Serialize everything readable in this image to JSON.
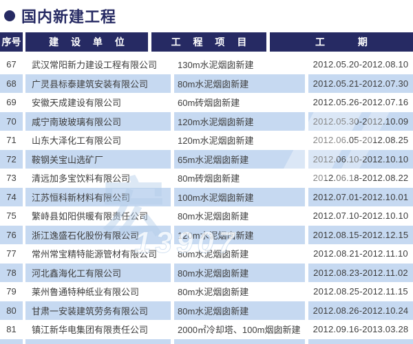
{
  "title": "国内新建工程",
  "colors": {
    "navy": "#262a63",
    "row_blue": "#c6d9f1",
    "body_text": "#3d3d3d",
    "header_text": "#ffffff"
  },
  "table": {
    "headers": [
      "序号",
      "建 设 单 位",
      "工 程 项 目",
      "工 期"
    ],
    "rows": [
      {
        "no": "67",
        "company": "武汉常阳新力建设工程有限公司",
        "project": "130m水泥烟囱新建",
        "period": "2012.05.20-2012.08.10"
      },
      {
        "no": "68",
        "company": "广灵县标泰建筑安装有限公司",
        "project": "80m水泥烟囱新建",
        "period": "2012.05.21-2012.07.30"
      },
      {
        "no": "69",
        "company": "安徽天成建设有限公司",
        "project": "60m砖烟囱新建",
        "period": "2012.05.26-2012.07.16"
      },
      {
        "no": "70",
        "company": "咸宁南玻玻璃有限公司",
        "project": "120m水泥烟囱新建",
        "period": "2012.05.30-2012.10.09"
      },
      {
        "no": "71",
        "company": "山东大泽化工有限公司",
        "project": "120m水泥烟囱新建",
        "period": "2012.06.05-2012.08.25"
      },
      {
        "no": "72",
        "company": "鞍钢关宝山选矿厂",
        "project": "65m水泥烟囱新建",
        "period": "2012.06.10-2012.10.10"
      },
      {
        "no": "73",
        "company": "清远加多宝饮料有限公司",
        "project": "80m砖烟囱新建",
        "period": "2012.06.18-2012.08.22"
      },
      {
        "no": "74",
        "company": "江苏恒科新材料有限公司",
        "project": "100m水泥烟囱新建",
        "period": "2012.07.01-2012.10.01"
      },
      {
        "no": "75",
        "company": "繁峙县如阳供暖有限责任公司",
        "project": "80m水泥烟囱新建",
        "period": "2012.07.10-2012.10.10"
      },
      {
        "no": "76",
        "company": "浙江逸盛石化股份有限公司",
        "project": "120m水泥烟囱新建",
        "period": "2012.08.15-2012.12.15"
      },
      {
        "no": "77",
        "company": "常州常宝精特能源管材有限公司",
        "project": "80m水泥烟囱新建",
        "period": "2012.08.21-2012.11.10"
      },
      {
        "no": "78",
        "company": "河北鑫海化工有限公司",
        "project": "80m水泥烟囱新建",
        "period": "2012.08.23-2012.11.02"
      },
      {
        "no": "79",
        "company": "莱州鲁通特种纸业有限公司",
        "project": "80m水泥烟囱新建",
        "period": "2012.08.25-2012.11.15"
      },
      {
        "no": "80",
        "company": "甘肃一安装建筑劳务有限公司",
        "project": "80m水泥烟囱新建",
        "period": "2012.08.26-2012.10.24"
      },
      {
        "no": "81",
        "company": "镇江新华电集团有限责任公司",
        "project": "2000㎡冷却塔、100m烟囱新建",
        "period": "2012.09.16-2013.03.28"
      }
    ]
  },
  "watermark": {
    "char_fragment": "宏",
    "digits_fragment": "13907"
  }
}
